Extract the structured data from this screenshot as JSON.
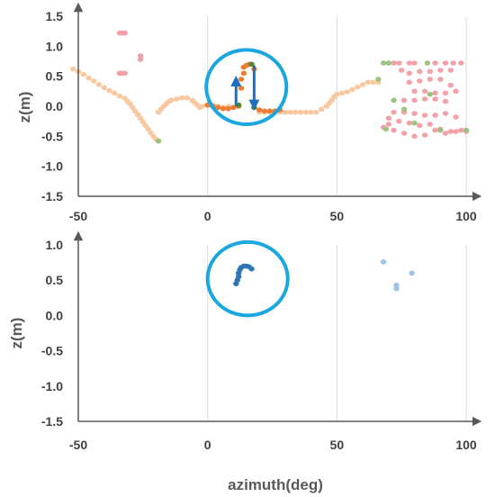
{
  "chart_data": [
    {
      "type": "scatter",
      "title": "",
      "xlabel": "",
      "ylabel": "z(m)",
      "xlim": [
        -50,
        100
      ],
      "ylim": [
        -1.5,
        1.5
      ],
      "xticks": [
        "-50",
        "0",
        "50",
        "100"
      ],
      "yticks": [
        "1.5",
        "1.0",
        "0.5",
        "0.0",
        "-0.5",
        "-1.0",
        "-1.5"
      ],
      "grid": "vertical",
      "legend": "none",
      "colors": {
        "light_orange": "#f8c9a0",
        "orange": "#ed7d31",
        "pink": "#f4a0a8",
        "green": "#9bc37d",
        "dark_green": "#4e8a2a",
        "arrow_blue": "#1f6fbf",
        "circle": "#1aa7e0"
      },
      "series": [
        {
          "color": "light_orange",
          "points": [
            [
              -52,
              0.62
            ],
            [
              -50,
              0.58
            ],
            [
              -48,
              0.53
            ],
            [
              -46,
              0.47
            ],
            [
              -44,
              0.42
            ],
            [
              -42,
              0.36
            ],
            [
              -40,
              0.31
            ],
            [
              -38,
              0.26
            ],
            [
              -36,
              0.22
            ],
            [
              -34,
              0.17
            ],
            [
              -32,
              0.13
            ],
            [
              -31,
              0.08
            ],
            [
              -30,
              0.04
            ],
            [
              -29,
              -0.02
            ],
            [
              -28,
              -0.08
            ],
            [
              -27,
              -0.14
            ],
            [
              -26,
              -0.2
            ],
            [
              -25,
              -0.26
            ],
            [
              -24,
              -0.32
            ],
            [
              -23,
              -0.38
            ],
            [
              -22,
              -0.44
            ],
            [
              -21,
              -0.5
            ],
            [
              -20,
              -0.55
            ],
            [
              -19,
              -0.58
            ],
            [
              -19,
              -0.1
            ],
            [
              -18,
              -0.05
            ],
            [
              -17,
              0.0
            ],
            [
              -16,
              0.04
            ],
            [
              -15,
              0.08
            ],
            [
              -14,
              0.1
            ],
            [
              -12,
              0.12
            ],
            [
              -10,
              0.14
            ],
            [
              -8,
              0.14
            ],
            [
              -6,
              0.1
            ],
            [
              -5,
              0.06
            ],
            [
              -4,
              0.02
            ],
            [
              -3,
              -0.02
            ],
            [
              -2,
              0.0
            ],
            [
              0,
              0.02
            ],
            [
              2,
              0.02
            ],
            [
              4,
              0.0
            ],
            [
              6,
              -0.02
            ],
            [
              8,
              0.0
            ],
            [
              10,
              -0.02
            ],
            [
              20,
              -0.1
            ],
            [
              22,
              -0.1
            ],
            [
              24,
              -0.1
            ],
            [
              26,
              -0.1
            ],
            [
              28,
              -0.1
            ],
            [
              30,
              -0.1
            ],
            [
              32,
              -0.1
            ],
            [
              34,
              -0.1
            ],
            [
              36,
              -0.1
            ],
            [
              38,
              -0.1
            ],
            [
              40,
              -0.1
            ],
            [
              42,
              -0.1
            ],
            [
              44,
              -0.05
            ],
            [
              46,
              0.0
            ],
            [
              47,
              0.05
            ],
            [
              48,
              0.1
            ],
            [
              49,
              0.16
            ],
            [
              50,
              0.2
            ],
            [
              52,
              0.22
            ],
            [
              54,
              0.24
            ],
            [
              56,
              0.28
            ],
            [
              58,
              0.32
            ],
            [
              60,
              0.36
            ],
            [
              62,
              0.4
            ],
            [
              64,
              0.4
            ],
            [
              66,
              0.4
            ]
          ]
        },
        {
          "color": "orange",
          "points": [
            [
              0,
              0.02
            ],
            [
              2,
              0.0
            ],
            [
              4,
              -0.02
            ],
            [
              6,
              -0.04
            ],
            [
              8,
              -0.04
            ],
            [
              10,
              -0.02
            ],
            [
              12,
              0.0
            ],
            [
              13,
              0.3
            ],
            [
              13,
              0.45
            ],
            [
              14,
              0.55
            ],
            [
              14,
              0.65
            ],
            [
              15,
              0.68
            ],
            [
              16,
              0.7
            ],
            [
              18,
              0.62
            ],
            [
              18,
              -0.02
            ],
            [
              20,
              -0.06
            ],
            [
              22,
              -0.08
            ],
            [
              24,
              -0.08
            ],
            [
              26,
              -0.08
            ],
            [
              28,
              -0.06
            ]
          ]
        },
        {
          "color": "pink",
          "points": [
            [
              -34,
              1.22
            ],
            [
              -33,
              1.22
            ],
            [
              -32,
              1.22
            ],
            [
              -26,
              0.84
            ],
            [
              -26,
              0.78
            ],
            [
              -34,
              0.55
            ],
            [
              -33,
              0.55
            ],
            [
              -32,
              0.55
            ],
            [
              70,
              0.72
            ],
            [
              72,
              0.72
            ],
            [
              74,
              0.72
            ],
            [
              78,
              0.72
            ],
            [
              80,
              0.72
            ],
            [
              85,
              0.72
            ],
            [
              88,
              0.72
            ],
            [
              92,
              0.72
            ],
            [
              95,
              0.72
            ],
            [
              98,
              0.72
            ],
            [
              75,
              0.6
            ],
            [
              78,
              0.55
            ],
            [
              82,
              0.58
            ],
            [
              86,
              0.58
            ],
            [
              90,
              0.6
            ],
            [
              94,
              0.6
            ],
            [
              78,
              0.4
            ],
            [
              82,
              0.42
            ],
            [
              86,
              0.45
            ],
            [
              90,
              0.45
            ],
            [
              94,
              0.35
            ],
            [
              80,
              0.25
            ],
            [
              84,
              0.25
            ],
            [
              88,
              0.22
            ],
            [
              92,
              0.22
            ],
            [
              96,
              0.25
            ],
            [
              76,
              0.1
            ],
            [
              80,
              0.1
            ],
            [
              84,
              0.12
            ],
            [
              88,
              0.12
            ],
            [
              92,
              0.08
            ],
            [
              72,
              -0.1
            ],
            [
              76,
              -0.1
            ],
            [
              80,
              -0.12
            ],
            [
              84,
              -0.15
            ],
            [
              88,
              -0.15
            ],
            [
              92,
              -0.12
            ],
            [
              96,
              -0.18
            ],
            [
              70,
              -0.2
            ],
            [
              74,
              -0.25
            ],
            [
              78,
              -0.28
            ],
            [
              82,
              -0.32
            ],
            [
              86,
              -0.3
            ],
            [
              90,
              -0.38
            ],
            [
              94,
              -0.42
            ],
            [
              98,
              -0.4
            ],
            [
              76,
              -0.45
            ],
            [
              80,
              -0.5
            ],
            [
              84,
              -0.48
            ],
            [
              88,
              -0.4
            ],
            [
              92,
              -0.45
            ],
            [
              96,
              -0.42
            ],
            [
              100,
              -0.42
            ],
            [
              72,
              -0.4
            ],
            [
              70,
              -0.3
            ],
            [
              68,
              -0.35
            ]
          ]
        },
        {
          "color": "green",
          "points": [
            [
              -19,
              -0.58
            ],
            [
              68,
              0.72
            ],
            [
              70,
              0.72
            ],
            [
              85,
              0.72
            ],
            [
              66,
              0.45
            ],
            [
              72,
              0.1
            ],
            [
              76,
              -0.05
            ],
            [
              90,
              -0.4
            ],
            [
              100,
              -0.4
            ],
            [
              69,
              -0.38
            ],
            [
              80,
              -0.28
            ],
            [
              86,
              0.2
            ]
          ]
        },
        {
          "color": "dark_green",
          "points": [
            [
              12,
              0.02
            ],
            [
              17,
              0.7
            ],
            [
              18,
              -0.02
            ]
          ]
        }
      ],
      "annotations": [
        {
          "type": "arrow",
          "direction": "up",
          "from": [
            11,
            0.0
          ],
          "to": [
            11,
            0.42
          ],
          "color": "arrow_blue"
        },
        {
          "type": "arrow",
          "direction": "down",
          "from": [
            18,
            0.68
          ],
          "to": [
            18,
            0.02
          ],
          "color": "arrow_blue"
        },
        {
          "type": "circle",
          "center": [
            15,
            0.32
          ],
          "rx": 15.5,
          "ry": 0.62,
          "color": "circle"
        }
      ]
    },
    {
      "type": "scatter",
      "title": "",
      "xlabel": "azimuth(deg)",
      "ylabel": "z(m)",
      "xlim": [
        -50,
        100
      ],
      "ylim": [
        -1.5,
        1.0
      ],
      "xticks": [
        "-50",
        "0",
        "50",
        "100"
      ],
      "yticks": [
        "1.0",
        "0.5",
        "0.0",
        "-0.5",
        "-1.0",
        "-1.5"
      ],
      "grid": "vertical",
      "legend": "none",
      "colors": {
        "dark_blue": "#2e75b6",
        "light_blue": "#9dc3e6",
        "circle": "#1aa7e0"
      },
      "series": [
        {
          "color": "dark_blue",
          "points": [
            [
              11,
              0.45
            ],
            [
              11.5,
              0.5
            ],
            [
              12,
              0.55
            ],
            [
              12,
              0.6
            ],
            [
              12.5,
              0.65
            ],
            [
              13,
              0.68
            ],
            [
              14,
              0.7
            ],
            [
              15,
              0.7
            ],
            [
              16,
              0.69
            ],
            [
              17,
              0.66
            ]
          ]
        },
        {
          "color": "light_blue",
          "points": [
            [
              68,
              0.76
            ],
            [
              79,
              0.6
            ],
            [
              73,
              0.43
            ],
            [
              73,
              0.38
            ]
          ]
        }
      ],
      "annotations": [
        {
          "type": "circle",
          "center": [
            15.5,
            0.52
          ],
          "rx": 15.5,
          "ry": 0.52,
          "color": "circle"
        }
      ]
    }
  ]
}
